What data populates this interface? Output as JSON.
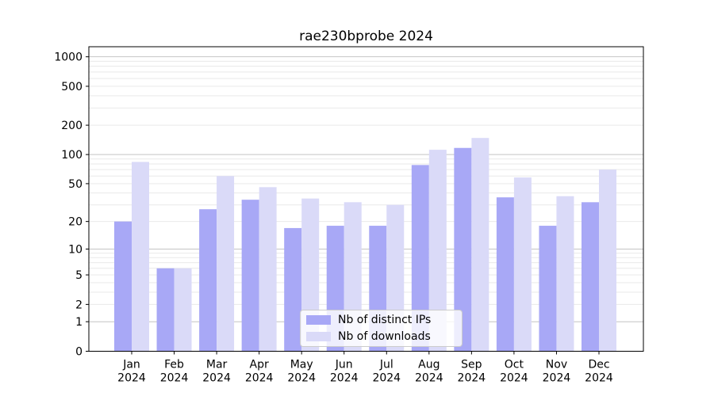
{
  "chart_data": {
    "type": "bar",
    "title": "rae230bprobe 2024",
    "categories": [
      "Jan",
      "Feb",
      "Mar",
      "Apr",
      "May",
      "Jun",
      "Jul",
      "Aug",
      "Sep",
      "Oct",
      "Nov",
      "Dec"
    ],
    "category_year": "2024",
    "series": [
      {
        "name": "Nb of distinct IPs",
        "color": "#a8a8f6",
        "values": [
          20,
          6,
          27,
          34,
          17,
          18,
          18,
          78,
          117,
          36,
          18,
          32
        ]
      },
      {
        "name": "Nb of downloads",
        "color": "#dadaf8",
        "values": [
          84,
          6,
          60,
          46,
          35,
          32,
          30,
          112,
          148,
          58,
          37,
          70
        ]
      }
    ],
    "y_ticks": [
      0,
      1,
      2,
      5,
      10,
      20,
      50,
      100,
      200,
      500,
      1000
    ],
    "y_scale": "log1p",
    "ylim": [
      0,
      1266
    ],
    "grid": true,
    "legend_position": "lower center inside",
    "colors": {
      "axis": "#000000",
      "major_grid": "#c4c4c4",
      "minor_grid": "#e9e9e9",
      "text": "#000000",
      "background": "#ffffff",
      "legend_border": "#cccccc"
    }
  }
}
